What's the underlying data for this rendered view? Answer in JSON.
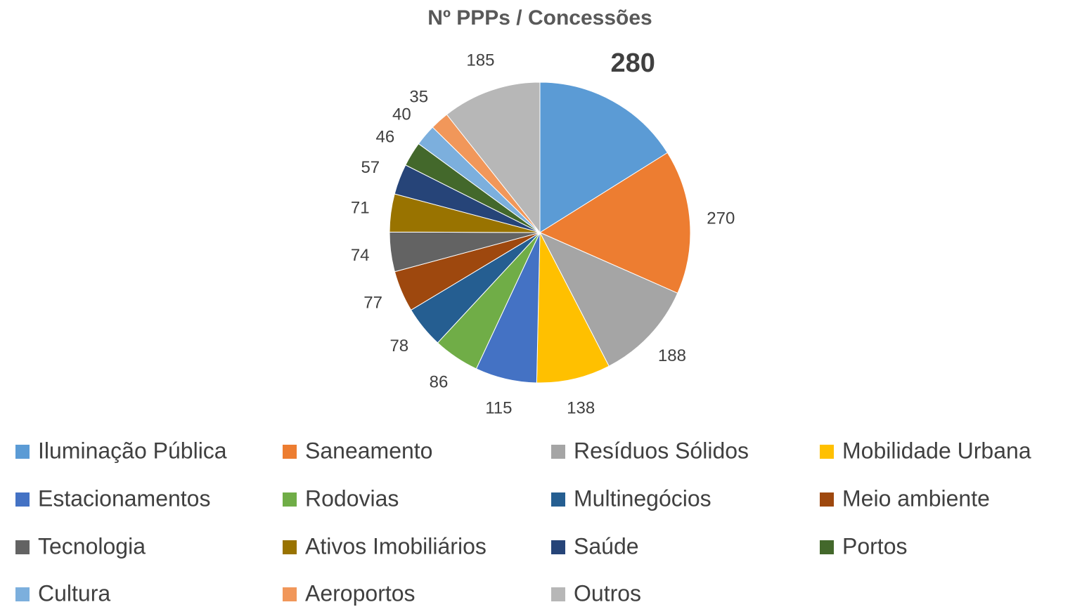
{
  "chart_data": {
    "type": "pie",
    "title": "Nº PPPs / Concessões",
    "categories": [
      "Iluminação Pública",
      "Saneamento",
      "Resíduos Sólidos",
      "Mobilidade Urbana",
      "Estacionamentos",
      "Rodovias",
      "Multinegócios",
      "Meio ambiente",
      "Tecnologia",
      "Ativos Imobiliários",
      "Saúde",
      "Portos",
      "Cultura",
      "Aeroportos",
      "Outros"
    ],
    "values": [
      280,
      270,
      188,
      138,
      115,
      86,
      78,
      77,
      74,
      71,
      57,
      46,
      40,
      35,
      185
    ],
    "colors": [
      "#5b9bd5",
      "#ed7d31",
      "#a5a5a5",
      "#ffc000",
      "#4472c4",
      "#70ad47",
      "#255e91",
      "#9e480e",
      "#636363",
      "#997300",
      "#264478",
      "#43682b",
      "#7cafdd",
      "#f1975a",
      "#b7b7b7"
    ],
    "legend": "bottom"
  }
}
